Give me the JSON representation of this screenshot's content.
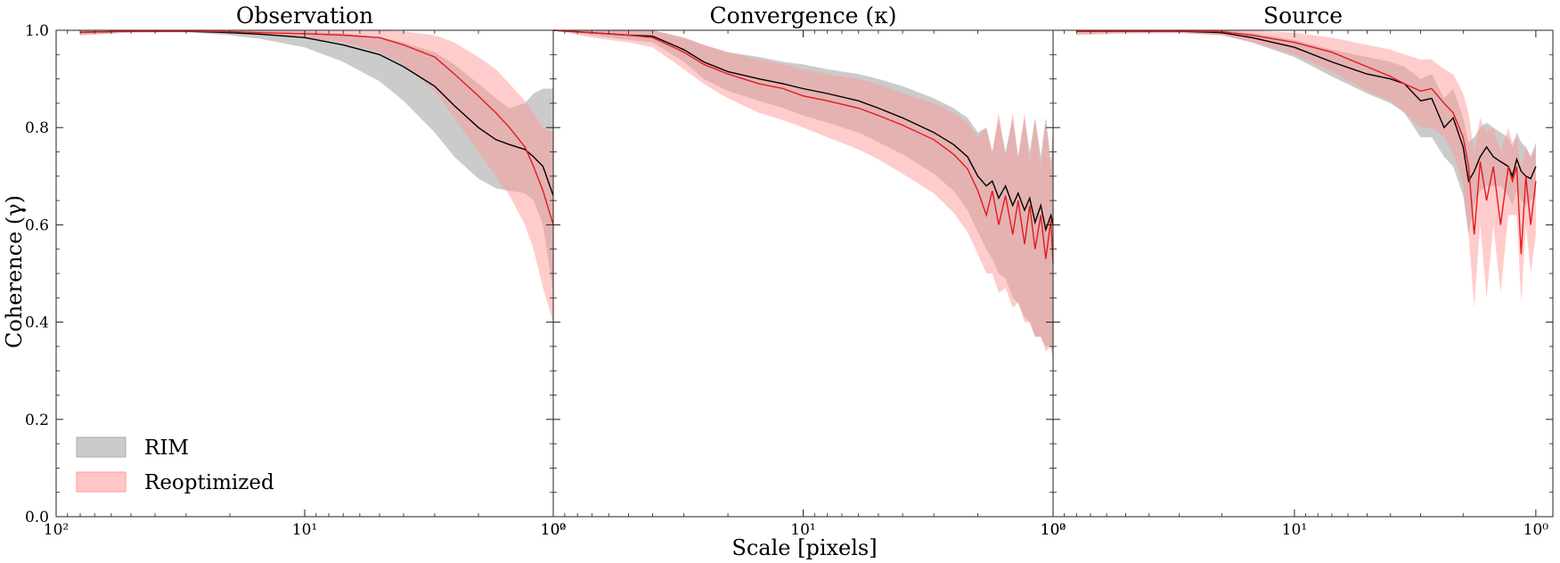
{
  "figure": {
    "ylabel": "Coherence (γ)",
    "xlabel": "Scale [pixels]",
    "legend": {
      "placement": "lower-left of first panel",
      "entries": [
        {
          "label": "RIM",
          "color": "#a9a9a9"
        },
        {
          "label": "Reoptimized",
          "color": "#ff9b9b"
        }
      ]
    },
    "colors": {
      "rim_line": "#000000",
      "rim_band": "#a8a8a8",
      "reopt_line": "#e41a1c",
      "reopt_band": "#ff9999"
    }
  },
  "chart_data": [
    {
      "type": "line",
      "title": "Observation",
      "xscale": "log",
      "xlim": [
        100,
        1
      ],
      "ylim": [
        0.0,
        1.0
      ],
      "xticks": [
        {
          "v": 100,
          "label": "10²"
        },
        {
          "v": 10,
          "label": "10¹"
        },
        {
          "v": 1,
          "label": "10⁰"
        }
      ],
      "yticks": [
        "0.0",
        "0.2",
        "0.4",
        "0.6",
        "0.8",
        "1.0"
      ],
      "grid": false,
      "series": [
        {
          "name": "RIM",
          "x": [
            80,
            50,
            30,
            20,
            15,
            10,
            7,
            5,
            4,
            3,
            2.5,
            2,
            1.7,
            1.5,
            1.3,
            1.2,
            1.1,
            1.0
          ],
          "y": [
            0.996,
            0.998,
            0.998,
            0.995,
            0.992,
            0.985,
            0.97,
            0.95,
            0.925,
            0.885,
            0.845,
            0.8,
            0.775,
            0.765,
            0.755,
            0.74,
            0.72,
            0.66
          ],
          "lower": [
            0.99,
            0.996,
            0.996,
            0.99,
            0.982,
            0.965,
            0.935,
            0.895,
            0.855,
            0.79,
            0.74,
            0.695,
            0.675,
            0.67,
            0.665,
            0.65,
            0.6,
            0.46
          ],
          "upper": [
            1.0,
            1.0,
            1.0,
            1.0,
            0.999,
            0.998,
            0.994,
            0.985,
            0.975,
            0.955,
            0.93,
            0.89,
            0.86,
            0.84,
            0.85,
            0.87,
            0.88,
            0.88
          ]
        },
        {
          "name": "Reoptimized",
          "x": [
            80,
            50,
            30,
            20,
            15,
            10,
            7,
            5,
            4,
            3,
            2.5,
            2,
            1.7,
            1.5,
            1.3,
            1.2,
            1.1,
            1.0
          ],
          "y": [
            0.996,
            0.998,
            0.998,
            0.997,
            0.995,
            0.993,
            0.99,
            0.985,
            0.97,
            0.945,
            0.91,
            0.865,
            0.83,
            0.8,
            0.76,
            0.72,
            0.67,
            0.6
          ],
          "lower": [
            0.99,
            0.995,
            0.996,
            0.994,
            0.99,
            0.984,
            0.975,
            0.955,
            0.93,
            0.875,
            0.82,
            0.75,
            0.7,
            0.66,
            0.6,
            0.55,
            0.47,
            0.4
          ],
          "upper": [
            1.0,
            1.0,
            1.0,
            1.0,
            1.0,
            1.0,
            1.0,
            1.0,
            0.998,
            0.99,
            0.975,
            0.945,
            0.92,
            0.89,
            0.855,
            0.83,
            0.8,
            0.79
          ]
        }
      ]
    },
    {
      "type": "line",
      "title": "Convergence (κ)",
      "xscale": "log",
      "xlim": [
        100,
        1
      ],
      "ylim": [
        0.0,
        1.0
      ],
      "xticks": [
        {
          "v": 100,
          "label": "10²"
        },
        {
          "v": 10,
          "label": "10¹"
        },
        {
          "v": 1,
          "label": "10⁰"
        }
      ],
      "yticks": [
        "0.0",
        "0.2",
        "0.4",
        "0.6",
        "0.8",
        "1.0"
      ],
      "grid": false,
      "series": [
        {
          "name": "RIM",
          "x": [
            100,
            70,
            50,
            40,
            30,
            25,
            20,
            15,
            12,
            10,
            8,
            6,
            5,
            4,
            3,
            2.5,
            2.2,
            2.0,
            1.85,
            1.75,
            1.65,
            1.55,
            1.45,
            1.38,
            1.3,
            1.24,
            1.18,
            1.12,
            1.07,
            1.02,
            1.0
          ],
          "y": [
            1.0,
            0.995,
            0.99,
            0.988,
            0.96,
            0.935,
            0.915,
            0.9,
            0.89,
            0.88,
            0.87,
            0.855,
            0.84,
            0.82,
            0.79,
            0.765,
            0.74,
            0.7,
            0.68,
            0.69,
            0.655,
            0.68,
            0.64,
            0.665,
            0.63,
            0.655,
            0.605,
            0.64,
            0.59,
            0.62,
            0.6
          ],
          "lower": [
            1.0,
            0.99,
            0.98,
            0.975,
            0.935,
            0.9,
            0.875,
            0.855,
            0.84,
            0.825,
            0.81,
            0.79,
            0.77,
            0.745,
            0.705,
            0.67,
            0.63,
            0.585,
            0.55,
            0.53,
            0.5,
            0.49,
            0.45,
            0.44,
            0.41,
            0.4,
            0.37,
            0.37,
            0.35,
            0.35,
            0.33
          ],
          "upper": [
            1.0,
            1.0,
            1.0,
            1.0,
            0.985,
            0.97,
            0.955,
            0.945,
            0.935,
            0.93,
            0.92,
            0.91,
            0.9,
            0.885,
            0.86,
            0.84,
            0.82,
            0.79,
            0.8,
            0.75,
            0.82,
            0.75,
            0.82,
            0.74,
            0.82,
            0.75,
            0.82,
            0.74,
            0.82,
            0.73,
            0.8
          ]
        },
        {
          "name": "Reoptimized",
          "x": [
            100,
            70,
            50,
            40,
            30,
            25,
            20,
            15,
            12,
            10,
            8,
            6,
            5,
            4,
            3,
            2.5,
            2.2,
            2.0,
            1.85,
            1.75,
            1.65,
            1.55,
            1.45,
            1.38,
            1.3,
            1.24,
            1.18,
            1.12,
            1.07,
            1.02,
            1.0
          ],
          "y": [
            1.0,
            0.995,
            0.99,
            0.985,
            0.955,
            0.93,
            0.91,
            0.89,
            0.88,
            0.865,
            0.855,
            0.84,
            0.825,
            0.805,
            0.775,
            0.745,
            0.715,
            0.67,
            0.62,
            0.67,
            0.6,
            0.66,
            0.58,
            0.65,
            0.56,
            0.64,
            0.55,
            0.62,
            0.53,
            0.61,
            0.52
          ],
          "lower": [
            1.0,
            0.985,
            0.975,
            0.965,
            0.92,
            0.89,
            0.86,
            0.83,
            0.815,
            0.8,
            0.78,
            0.755,
            0.735,
            0.705,
            0.665,
            0.625,
            0.585,
            0.54,
            0.5,
            0.5,
            0.46,
            0.47,
            0.43,
            0.44,
            0.4,
            0.4,
            0.37,
            0.37,
            0.34,
            0.35,
            0.32
          ],
          "upper": [
            1.0,
            1.0,
            1.0,
            1.0,
            0.985,
            0.97,
            0.955,
            0.94,
            0.93,
            0.92,
            0.91,
            0.9,
            0.89,
            0.87,
            0.85,
            0.83,
            0.81,
            0.78,
            0.8,
            0.75,
            0.83,
            0.74,
            0.83,
            0.74,
            0.83,
            0.73,
            0.82,
            0.72,
            0.82,
            0.72,
            0.8
          ]
        }
      ]
    },
    {
      "type": "line",
      "title": "Source",
      "xscale": "log",
      "xlim": [
        100,
        0.85
      ],
      "ylim": [
        0.0,
        1.0
      ],
      "xticks": [
        {
          "v": 100,
          "label": "10²"
        },
        {
          "v": 10,
          "label": "10¹"
        },
        {
          "v": 1,
          "label": "10⁰"
        }
      ],
      "yticks": [
        "0.0",
        "0.2",
        "0.4",
        "0.6",
        "0.8",
        "1.0"
      ],
      "grid": false,
      "series": [
        {
          "name": "RIM",
          "x": [
            80,
            50,
            30,
            20,
            15,
            10,
            7,
            5,
            4,
            3.5,
            3,
            2.7,
            2.4,
            2.2,
            2.0,
            1.9,
            1.8,
            1.7,
            1.6,
            1.5,
            1.4,
            1.3,
            1.25,
            1.2,
            1.15,
            1.1,
            1.05,
            1.0
          ],
          "y": [
            0.998,
            0.998,
            0.998,
            0.995,
            0.985,
            0.965,
            0.935,
            0.91,
            0.9,
            0.89,
            0.855,
            0.86,
            0.8,
            0.82,
            0.76,
            0.69,
            0.71,
            0.74,
            0.76,
            0.74,
            0.73,
            0.72,
            0.7,
            0.735,
            0.71,
            0.7,
            0.695,
            0.72
          ],
          "lower": [
            0.992,
            0.995,
            0.995,
            0.99,
            0.975,
            0.945,
            0.905,
            0.87,
            0.85,
            0.83,
            0.78,
            0.78,
            0.74,
            0.72,
            0.66,
            0.58,
            0.64,
            0.67,
            0.68,
            0.68,
            0.68,
            0.66,
            0.64,
            0.67,
            0.65,
            0.64,
            0.65,
            0.66
          ],
          "upper": [
            1.0,
            1.0,
            1.0,
            1.0,
            0.995,
            0.98,
            0.96,
            0.945,
            0.935,
            0.925,
            0.9,
            0.91,
            0.86,
            0.88,
            0.82,
            0.77,
            0.78,
            0.8,
            0.81,
            0.8,
            0.79,
            0.78,
            0.76,
            0.79,
            0.77,
            0.76,
            0.74,
            0.77
          ]
        },
        {
          "name": "Reoptimized",
          "x": [
            80,
            50,
            30,
            20,
            15,
            10,
            7,
            5,
            4,
            3.5,
            3,
            2.7,
            2.4,
            2.2,
            2.0,
            1.9,
            1.8,
            1.7,
            1.6,
            1.5,
            1.4,
            1.3,
            1.25,
            1.2,
            1.15,
            1.1,
            1.05,
            1.0
          ],
          "y": [
            0.998,
            0.998,
            0.998,
            0.997,
            0.99,
            0.975,
            0.955,
            0.925,
            0.905,
            0.89,
            0.875,
            0.88,
            0.85,
            0.83,
            0.78,
            0.72,
            0.58,
            0.73,
            0.65,
            0.72,
            0.6,
            0.72,
            0.69,
            0.72,
            0.54,
            0.7,
            0.6,
            0.69
          ],
          "lower": [
            0.99,
            0.993,
            0.994,
            0.99,
            0.975,
            0.95,
            0.915,
            0.875,
            0.855,
            0.83,
            0.8,
            0.8,
            0.78,
            0.75,
            0.68,
            0.58,
            0.43,
            0.6,
            0.45,
            0.6,
            0.46,
            0.62,
            0.62,
            0.62,
            0.44,
            0.6,
            0.5,
            0.58
          ],
          "upper": [
            1.0,
            1.0,
            1.0,
            1.0,
            1.0,
            0.995,
            0.985,
            0.97,
            0.96,
            0.95,
            0.94,
            0.94,
            0.92,
            0.91,
            0.87,
            0.83,
            0.75,
            0.82,
            0.79,
            0.8,
            0.75,
            0.8,
            0.77,
            0.78,
            0.72,
            0.76,
            0.74,
            0.76
          ]
        }
      ]
    }
  ]
}
